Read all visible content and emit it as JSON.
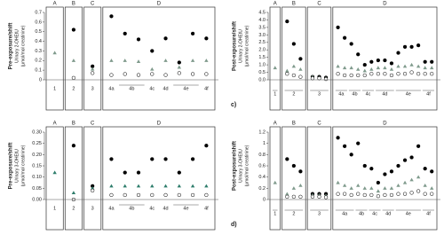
{
  "chart_data": [
    {
      "type": "scatter",
      "title_lines": [
        "Pre-exposure/shift",
        "Urinary 2-OHEtU",
        "(μmol/mol creatinine)"
      ],
      "ylim": [
        0,
        0.7
      ],
      "yticks": [
        0,
        0.1,
        0.2,
        0.3,
        0.4,
        0.5,
        0.6,
        0.7
      ],
      "markers": {
        "max": {
          "shape": "circle",
          "color": "#000000"
        },
        "median": {
          "shape": "triangle",
          "color": "#7f9a8c"
        },
        "min": {
          "shape": "circle",
          "color": "#ffffff"
        }
      },
      "groups": [
        {
          "name": "A",
          "sets": [
            {
              "label": "1",
              "samples": [
                null
              ],
              "median": [
                0.28
              ]
            }
          ]
        },
        {
          "name": "B",
          "sets": [
            {
              "label": "2",
              "samples": [
                null
              ],
              "max": [
                0.52
              ],
              "median": [
                0.2
              ],
              "min": [
                0.02
              ]
            }
          ]
        },
        {
          "name": "C",
          "sets": [
            {
              "label": "3",
              "samples": [
                null
              ],
              "max": [
                0.14
              ],
              "median": [
                0.11
              ],
              "min": [
                0.07
              ]
            }
          ]
        },
        {
          "name": "D",
          "sets": [
            {
              "label": "4a",
              "samples": [
                null
              ],
              "max": [
                0.66
              ],
              "median": [
                0.2
              ],
              "min": [
                0.05
              ]
            },
            {
              "label": "4b",
              "samples": [
                null,
                null
              ],
              "max": [
                0.48,
                0.42
              ],
              "median": [
                0.2,
                0.19
              ],
              "min": [
                0.06,
                0.05
              ]
            },
            {
              "label": "4c",
              "samples": [
                null
              ],
              "max": [
                0.3
              ],
              "median": [
                0.11
              ],
              "min": [
                0.06
              ]
            },
            {
              "label": "4d",
              "samples": [
                null
              ],
              "max": [
                0.43
              ],
              "median": [
                0.2
              ],
              "min": [
                0.05
              ]
            },
            {
              "label": "4e",
              "samples": [
                null,
                null
              ],
              "max": [
                0.18,
                0.48
              ],
              "median": [
                0.13,
                0.2
              ],
              "min": [
                0.07,
                0.06
              ]
            },
            {
              "label": "4f",
              "samples": [
                null
              ],
              "max": [
                0.43
              ],
              "median": [
                0.2
              ],
              "min": [
                0.06
              ]
            }
          ]
        }
      ]
    },
    {
      "type": "scatter",
      "title_lines": [
        "Post-exposure/shift",
        "Urinary 2-OHEtU",
        "(μmol/mol creatinine)"
      ],
      "label": "c)",
      "ylim": [
        0,
        4.5
      ],
      "yticks": [
        {
          "value": 0,
          "label": "0.0"
        },
        0.5,
        {
          "value": 1,
          "label": "1.0"
        },
        1.5,
        {
          "value": 2,
          "label": "2.0"
        },
        2.5,
        {
          "value": 3,
          "label": "3.0"
        },
        3.5,
        {
          "value": 4,
          "label": "4.0"
        },
        4.5
      ],
      "markers": {
        "max": {
          "shape": "circle",
          "color": "#000000"
        },
        "median": {
          "shape": "triangle",
          "color": "#7f9a8c"
        },
        "min": {
          "shape": "circle",
          "color": "#ffffff"
        }
      },
      "groups": [
        {
          "name": "A",
          "sets": [
            {
              "label": "1",
              "samples": [
                null
              ],
              "median": [
                0.8
              ]
            }
          ]
        },
        {
          "name": "B",
          "sets": [
            {
              "label": "2",
              "samples": [
                null,
                null,
                null
              ],
              "max": [
                3.9,
                2.4,
                1.4
              ],
              "median": [
                0.6,
                0.9,
                0.7
              ],
              "min": [
                0.4,
                0.3,
                0.2
              ]
            }
          ]
        },
        {
          "name": "C",
          "sets": [
            {
              "label": "3",
              "samples": [
                null,
                null,
                null
              ],
              "max": [
                0.2,
                0.2,
                0.15
              ],
              "median": [
                0.2,
                0.15,
                0.1
              ],
              "min": [
                0.1,
                0.1,
                0.05
              ]
            }
          ]
        },
        {
          "name": "D",
          "sets": [
            {
              "label": "4a",
              "samples": [
                null,
                null
              ],
              "max": [
                3.5,
                2.8
              ],
              "median": [
                0.9,
                0.8
              ],
              "min": [
                0.4,
                0.3
              ]
            },
            {
              "label": "4b",
              "samples": [
                null,
                null
              ],
              "max": [
                2.4,
                1.7
              ],
              "median": [
                0.8,
                0.7
              ],
              "min": [
                0.3,
                0.3
              ]
            },
            {
              "label": "4c",
              "samples": [
                null,
                null
              ],
              "max": [
                1.0,
                1.2
              ],
              "median": [
                0.6,
                0.7
              ],
              "min": [
                0.3,
                0.4
              ]
            },
            {
              "label": "4d",
              "samples": [
                null,
                null,
                null
              ],
              "max": [
                1.3,
                1.3,
                1.1
              ],
              "median": [
                0.8,
                0.8,
                0.7
              ],
              "min": [
                0.4,
                0.4,
                0.3
              ]
            },
            {
              "label": "4e",
              "samples": [
                null,
                null,
                null,
                null
              ],
              "max": [
                1.8,
                2.2,
                2.2,
                2.3
              ],
              "median": [
                0.9,
                0.9,
                1.0,
                0.9
              ],
              "min": [
                0.4,
                0.4,
                0.5,
                0.4
              ]
            },
            {
              "label": "4f",
              "samples": [
                null,
                null
              ],
              "max": [
                1.2,
                1.2
              ],
              "median": [
                0.8,
                0.8
              ],
              "min": [
                0.4,
                0.4
              ]
            }
          ]
        }
      ]
    },
    {
      "type": "scatter",
      "title_lines": [
        "Pre-exposure/shift",
        "Urinary 3-OHEtU",
        "(μmol/mol creatinine)"
      ],
      "ylim": [
        0,
        0.3
      ],
      "yticks": [
        {
          "value": 0,
          "label": "0.00"
        },
        0.05,
        {
          "value": 0.1,
          "label": "0.10"
        },
        0.15,
        {
          "value": 0.2,
          "label": "0.20"
        },
        0.25,
        {
          "value": 0.3,
          "label": "0.30"
        }
      ],
      "markers": {
        "max": {
          "shape": "circle",
          "color": "#000000"
        },
        "median": {
          "shape": "triangle",
          "color": "#2e7d6b"
        },
        "min": {
          "shape": "circle",
          "color": "#ffffff"
        }
      },
      "groups": [
        {
          "name": "A",
          "sets": [
            {
              "label": "1",
              "samples": [
                null
              ],
              "median": [
                0.12
              ]
            }
          ]
        },
        {
          "name": "B",
          "sets": [
            {
              "label": "2",
              "samples": [
                null
              ],
              "max": [
                0.24
              ],
              "median": [
                0.03
              ],
              "min": [
                0.0
              ]
            }
          ]
        },
        {
          "name": "C",
          "sets": [
            {
              "label": "3",
              "samples": [
                null
              ],
              "max": [
                0.06
              ],
              "median": [
                0.05
              ],
              "min": [
                0.04
              ]
            }
          ]
        },
        {
          "name": "D",
          "sets": [
            {
              "label": "4a",
              "samples": [
                null
              ],
              "max": [
                0.18
              ],
              "median": [
                0.06
              ],
              "min": [
                0.02
              ]
            },
            {
              "label": "4b",
              "samples": [
                null,
                null
              ],
              "max": [
                0.12,
                0.12
              ],
              "median": [
                0.06,
                0.06
              ],
              "min": [
                0.02,
                0.02
              ]
            },
            {
              "label": "4c",
              "samples": [
                null
              ],
              "max": [
                0.18
              ],
              "median": [
                0.06
              ],
              "min": [
                0.02
              ]
            },
            {
              "label": "4d",
              "samples": [
                null
              ],
              "max": [
                0.18
              ],
              "median": [
                0.06
              ],
              "min": [
                0.02
              ]
            },
            {
              "label": "4e",
              "samples": [
                null,
                null
              ],
              "max": [
                0.12,
                0.18
              ],
              "median": [
                0.06,
                0.06
              ],
              "min": [
                0.02,
                0.02
              ]
            },
            {
              "label": "4f",
              "samples": [
                null
              ],
              "max": [
                0.24
              ],
              "median": [
                0.06
              ],
              "min": [
                0.02
              ]
            }
          ]
        }
      ]
    },
    {
      "type": "scatter",
      "title_lines": [
        "Post-exposure/shift",
        "Urinary 3-OHEtU",
        "(μmol/mol creatinine)"
      ],
      "label": "d)",
      "ylim": [
        0,
        1.2
      ],
      "yticks": [
        0,
        0.2,
        0.4,
        0.6,
        0.8,
        1,
        1.2
      ],
      "markers": {
        "max": {
          "shape": "circle",
          "color": "#000000"
        },
        "median": {
          "shape": "triangle",
          "color": "#7f9a8c"
        },
        "min": {
          "shape": "circle",
          "color": "#ffffff"
        }
      },
      "groups": [
        {
          "name": "A",
          "sets": [
            {
              "label": "1",
              "samples": [
                null
              ],
              "median": [
                0.3
              ]
            }
          ]
        },
        {
          "name": "B",
          "sets": [
            {
              "label": "2",
              "samples": [
                null,
                null,
                null
              ],
              "max": [
                0.72,
                0.6,
                0.5
              ],
              "median": [
                0.1,
                0.2,
                0.25
              ],
              "min": [
                0.05,
                0.05,
                0.05
              ]
            }
          ]
        },
        {
          "name": "C",
          "sets": [
            {
              "label": "3",
              "samples": [
                null,
                null,
                null
              ],
              "max": [
                0.1,
                0.1,
                0.1
              ],
              "median": [
                0.08,
                0.08,
                0.07
              ],
              "min": [
                0.05,
                0.05,
                0.04
              ]
            }
          ]
        },
        {
          "name": "D",
          "sets": [
            {
              "label": "4a",
              "samples": [
                null,
                null,
                null
              ],
              "max": [
                1.1,
                0.95,
                0.8
              ],
              "median": [
                0.3,
                0.25,
                0.2
              ],
              "min": [
                0.1,
                0.1,
                0.08
              ]
            },
            {
              "label": "4b",
              "samples": [
                null,
                null
              ],
              "max": [
                1.0,
                0.6
              ],
              "median": [
                0.25,
                0.2
              ],
              "min": [
                0.1,
                0.08
              ]
            },
            {
              "label": "4c",
              "samples": [
                null,
                null
              ],
              "max": [
                0.55,
                0.3
              ],
              "median": [
                0.2,
                0.15
              ],
              "min": [
                0.08,
                0.06
              ]
            },
            {
              "label": "4d",
              "samples": [
                null,
                null
              ],
              "max": [
                0.45,
                0.5
              ],
              "median": [
                0.2,
                0.2
              ],
              "min": [
                0.08,
                0.08
              ]
            },
            {
              "label": "4e",
              "samples": [
                null,
                null,
                null,
                null
              ],
              "max": [
                0.6,
                0.7,
                0.75,
                0.95
              ],
              "median": [
                0.25,
                0.3,
                0.35,
                0.4
              ],
              "min": [
                0.1,
                0.1,
                0.12,
                0.15
              ]
            },
            {
              "label": "4f",
              "samples": [
                null,
                null
              ],
              "max": [
                0.55,
                0.5
              ],
              "median": [
                0.25,
                0.2
              ],
              "min": [
                0.1,
                0.1
              ]
            }
          ]
        }
      ]
    }
  ]
}
